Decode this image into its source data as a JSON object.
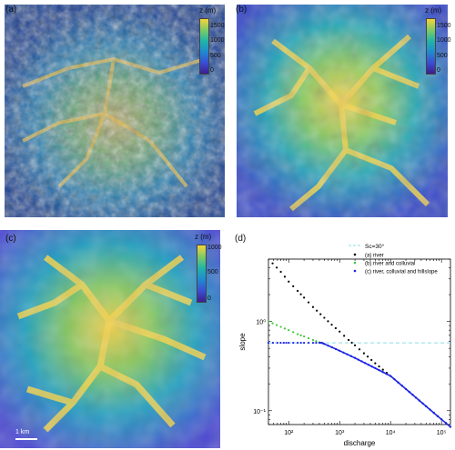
{
  "panels": {
    "a": {
      "label": "(a)",
      "colorbar": {
        "unit": "z (m)",
        "ticks": [
          "1500",
          "1000",
          "500",
          "0"
        ],
        "min": 0,
        "max": 1800
      }
    },
    "b": {
      "label": "(b)",
      "colorbar": {
        "unit": "z (m)",
        "ticks": [
          "1500",
          "1000",
          "500",
          "0"
        ],
        "min": 0,
        "max": 1800
      }
    },
    "c": {
      "label": "(c)",
      "colorbar": {
        "unit": "z (m)",
        "ticks": [
          "1000",
          "500",
          "0"
        ],
        "min": 0,
        "max": 1100
      },
      "scalebar": "1 km"
    },
    "d": {
      "label": "(d)"
    }
  },
  "colors": {
    "colormap": [
      "#3c1e8c",
      "#3a4fd4",
      "#1f8bd0",
      "#21b5a8",
      "#7fcc63",
      "#f5d43c",
      "#f1c232"
    ],
    "reference_line": "#88dde8",
    "series_a": "#000000",
    "series_b": "#3cc83c",
    "series_c": "#1e22e6"
  },
  "chart_data": {
    "type": "scatter",
    "x_scale": "log",
    "y_scale": "log",
    "xlabel": "discharge",
    "ylabel": "slope",
    "xlim": [
      40,
      150000
    ],
    "ylim": [
      0.07,
      5
    ],
    "xticks": [
      {
        "value": 100,
        "label": "10²"
      },
      {
        "value": 1000,
        "label": "10³"
      },
      {
        "value": 10000,
        "label": "10⁴"
      },
      {
        "value": 100000,
        "label": "10⁵"
      }
    ],
    "yticks": [
      {
        "value": 0.1,
        "label": "10⁻¹"
      },
      {
        "value": 1,
        "label": "10⁰"
      }
    ],
    "reference_line": {
      "name": "Sc=30°",
      "y": 0.577
    },
    "series": [
      {
        "name": "(a) river",
        "points": [
          [
            40,
            5.0
          ],
          [
            70,
            3.6
          ],
          [
            100,
            2.8
          ],
          [
            150,
            2.2
          ],
          [
            200,
            1.85
          ],
          [
            300,
            1.45
          ],
          [
            500,
            1.1
          ],
          [
            700,
            0.92
          ],
          [
            1000,
            0.77
          ],
          [
            1500,
            0.62
          ],
          [
            2000,
            0.54
          ],
          [
            3000,
            0.44
          ],
          [
            5000,
            0.34
          ],
          [
            10000,
            0.245
          ],
          [
            20000,
            0.175
          ],
          [
            50000,
            0.112
          ],
          [
            100000,
            0.08
          ],
          [
            150000,
            0.066
          ]
        ]
      },
      {
        "name": "(b) river and colluvial",
        "points": [
          [
            40,
            1.0
          ],
          [
            70,
            0.87
          ],
          [
            100,
            0.8
          ],
          [
            150,
            0.72
          ],
          [
            200,
            0.68
          ],
          [
            300,
            0.62
          ],
          [
            400,
            0.585
          ],
          [
            500,
            0.56
          ],
          [
            1000,
            0.47
          ],
          [
            2000,
            0.39
          ],
          [
            5000,
            0.3
          ],
          [
            10000,
            0.245
          ],
          [
            20000,
            0.175
          ],
          [
            50000,
            0.112
          ],
          [
            100000,
            0.08
          ],
          [
            150000,
            0.066
          ]
        ]
      },
      {
        "name": "(c) river, colluvial and hillslope",
        "points": [
          [
            40,
            0.577
          ],
          [
            60,
            0.577
          ],
          [
            80,
            0.577
          ],
          [
            100,
            0.577
          ],
          [
            150,
            0.577
          ],
          [
            200,
            0.577
          ],
          [
            300,
            0.577
          ],
          [
            400,
            0.577
          ],
          [
            450,
            0.577
          ],
          [
            500,
            0.56
          ],
          [
            1000,
            0.47
          ],
          [
            2000,
            0.39
          ],
          [
            5000,
            0.3
          ],
          [
            10000,
            0.245
          ],
          [
            20000,
            0.175
          ],
          [
            50000,
            0.112
          ],
          [
            100000,
            0.08
          ],
          [
            150000,
            0.066
          ]
        ]
      }
    ],
    "legend_position": "top-right"
  }
}
